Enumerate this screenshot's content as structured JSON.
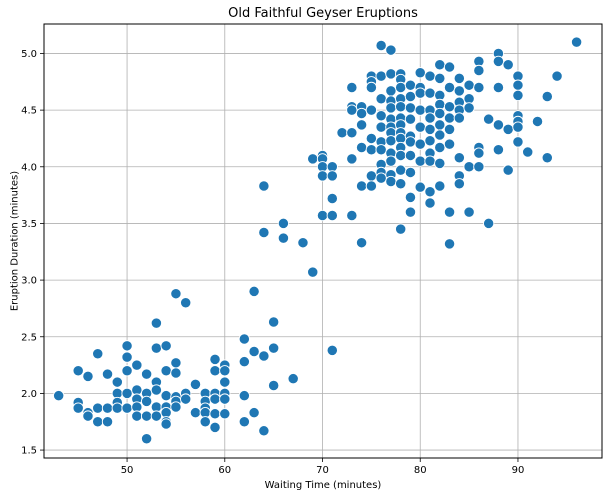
{
  "chart_data": {
    "type": "scatter",
    "title": "Old Faithful Geyser Eruptions",
    "xlabel": "Waiting Time (minutes)",
    "ylabel": "Eruption Duration (minutes)",
    "xlim": [
      41.5,
      98.6
    ],
    "ylim": [
      1.43,
      5.26
    ],
    "xticks": [
      50,
      60,
      70,
      80,
      90
    ],
    "yticks": [
      1.5,
      2.0,
      2.5,
      3.0,
      3.5,
      4.0,
      4.5,
      5.0
    ],
    "xtick_labels": [
      "50",
      "60",
      "70",
      "80",
      "90"
    ],
    "ytick_labels": [
      "1.5",
      "2.0",
      "2.5",
      "3.0",
      "3.5",
      "4.0",
      "4.5",
      "5.0"
    ],
    "grid": true,
    "marker_color": "#1f77b4",
    "points": [
      [
        43,
        1.98
      ],
      [
        45,
        2.2
      ],
      [
        45,
        1.92
      ],
      [
        45,
        1.87
      ],
      [
        46,
        1.83
      ],
      [
        46,
        1.8
      ],
      [
        46,
        2.15
      ],
      [
        47,
        2.35
      ],
      [
        47,
        1.87
      ],
      [
        47,
        1.75
      ],
      [
        48,
        1.87
      ],
      [
        48,
        1.75
      ],
      [
        48,
        2.17
      ],
      [
        49,
        2.1
      ],
      [
        49,
        2.0
      ],
      [
        49,
        1.92
      ],
      [
        49,
        1.87
      ],
      [
        50,
        2.42
      ],
      [
        50,
        2.32
      ],
      [
        50,
        2.2
      ],
      [
        50,
        2.0
      ],
      [
        50,
        1.87
      ],
      [
        51,
        2.25
      ],
      [
        51,
        2.03
      ],
      [
        51,
        1.95
      ],
      [
        51,
        1.88
      ],
      [
        51,
        1.8
      ],
      [
        52,
        2.17
      ],
      [
        52,
        2.0
      ],
      [
        52,
        1.93
      ],
      [
        52,
        1.8
      ],
      [
        52,
        1.6
      ],
      [
        53,
        2.62
      ],
      [
        53,
        2.4
      ],
      [
        53,
        2.1
      ],
      [
        53,
        2.03
      ],
      [
        53,
        1.88
      ],
      [
        53,
        1.8
      ],
      [
        54,
        2.42
      ],
      [
        54,
        2.2
      ],
      [
        54,
        1.98
      ],
      [
        54,
        1.88
      ],
      [
        54,
        1.83
      ],
      [
        54,
        1.75
      ],
      [
        54,
        1.73
      ],
      [
        55,
        2.88
      ],
      [
        55,
        2.27
      ],
      [
        55,
        2.18
      ],
      [
        55,
        1.97
      ],
      [
        55,
        1.93
      ],
      [
        55,
        1.88
      ],
      [
        56,
        2.8
      ],
      [
        56,
        2.0
      ],
      [
        56,
        1.95
      ],
      [
        57,
        2.08
      ],
      [
        57,
        1.83
      ],
      [
        58,
        2.0
      ],
      [
        58,
        1.93
      ],
      [
        58,
        1.87
      ],
      [
        58,
        1.83
      ],
      [
        58,
        1.75
      ],
      [
        59,
        2.3
      ],
      [
        59,
        2.2
      ],
      [
        59,
        2.0
      ],
      [
        59,
        1.95
      ],
      [
        59,
        1.82
      ],
      [
        59,
        1.7
      ],
      [
        60,
        2.25
      ],
      [
        60,
        2.2
      ],
      [
        60,
        2.1
      ],
      [
        60,
        2.0
      ],
      [
        60,
        1.95
      ],
      [
        60,
        1.82
      ],
      [
        62,
        2.48
      ],
      [
        62,
        2.28
      ],
      [
        62,
        1.98
      ],
      [
        62,
        1.75
      ],
      [
        63,
        2.9
      ],
      [
        63,
        2.37
      ],
      [
        63,
        1.83
      ],
      [
        64,
        3.83
      ],
      [
        64,
        3.42
      ],
      [
        64,
        2.33
      ],
      [
        64,
        1.67
      ],
      [
        65,
        2.63
      ],
      [
        65,
        2.4
      ],
      [
        65,
        2.07
      ],
      [
        66,
        3.5
      ],
      [
        66,
        3.37
      ],
      [
        67,
        2.13
      ],
      [
        68,
        3.33
      ],
      [
        69,
        4.07
      ],
      [
        69,
        3.07
      ],
      [
        70,
        4.1
      ],
      [
        70,
        4.07
      ],
      [
        70,
        4.0
      ],
      [
        70,
        3.92
      ],
      [
        70,
        3.57
      ],
      [
        71,
        4.0
      ],
      [
        71,
        3.92
      ],
      [
        71,
        3.72
      ],
      [
        71,
        3.57
      ],
      [
        71,
        2.38
      ],
      [
        72,
        4.3
      ],
      [
        73,
        4.7
      ],
      [
        73,
        4.53
      ],
      [
        73,
        4.5
      ],
      [
        73,
        4.3
      ],
      [
        73,
        4.07
      ],
      [
        73,
        3.57
      ],
      [
        74,
        4.53
      ],
      [
        74,
        4.47
      ],
      [
        74,
        4.37
      ],
      [
        74,
        4.17
      ],
      [
        74,
        3.83
      ],
      [
        74,
        3.33
      ],
      [
        75,
        4.8
      ],
      [
        75,
        4.75
      ],
      [
        75,
        4.7
      ],
      [
        75,
        4.5
      ],
      [
        75,
        4.25
      ],
      [
        75,
        4.15
      ],
      [
        75,
        3.92
      ],
      [
        75,
        3.83
      ],
      [
        76,
        5.07
      ],
      [
        76,
        4.8
      ],
      [
        76,
        4.6
      ],
      [
        76,
        4.45
      ],
      [
        76,
        4.35
      ],
      [
        76,
        4.22
      ],
      [
        76,
        4.15
      ],
      [
        76,
        4.02
      ],
      [
        76,
        3.95
      ],
      [
        76,
        3.9
      ],
      [
        77,
        5.03
      ],
      [
        77,
        4.82
      ],
      [
        77,
        4.67
      ],
      [
        77,
        4.58
      ],
      [
        77,
        4.52
      ],
      [
        77,
        4.42
      ],
      [
        77,
        4.35
      ],
      [
        77,
        4.3
      ],
      [
        77,
        4.23
      ],
      [
        77,
        4.12
      ],
      [
        77,
        4.05
      ],
      [
        77,
        3.93
      ],
      [
        77,
        3.87
      ],
      [
        78,
        4.82
      ],
      [
        78,
        4.77
      ],
      [
        78,
        4.7
      ],
      [
        78,
        4.6
      ],
      [
        78,
        4.53
      ],
      [
        78,
        4.43
      ],
      [
        78,
        4.37
      ],
      [
        78,
        4.3
      ],
      [
        78,
        4.25
      ],
      [
        78,
        4.17
      ],
      [
        78,
        4.1
      ],
      [
        78,
        3.97
      ],
      [
        78,
        3.85
      ],
      [
        78,
        3.45
      ],
      [
        79,
        4.72
      ],
      [
        79,
        4.62
      ],
      [
        79,
        4.52
      ],
      [
        79,
        4.42
      ],
      [
        79,
        4.27
      ],
      [
        79,
        4.22
      ],
      [
        79,
        4.1
      ],
      [
        79,
        3.95
      ],
      [
        79,
        3.73
      ],
      [
        79,
        3.6
      ],
      [
        80,
        4.83
      ],
      [
        80,
        4.7
      ],
      [
        80,
        4.65
      ],
      [
        80,
        4.5
      ],
      [
        80,
        4.35
      ],
      [
        80,
        4.2
      ],
      [
        80,
        4.05
      ],
      [
        80,
        3.82
      ],
      [
        81,
        4.8
      ],
      [
        81,
        4.65
      ],
      [
        81,
        4.5
      ],
      [
        81,
        4.43
      ],
      [
        81,
        4.33
      ],
      [
        81,
        4.23
      ],
      [
        81,
        4.12
      ],
      [
        81,
        4.05
      ],
      [
        81,
        3.78
      ],
      [
        81,
        3.68
      ],
      [
        82,
        4.9
      ],
      [
        82,
        4.78
      ],
      [
        82,
        4.63
      ],
      [
        82,
        4.55
      ],
      [
        82,
        4.47
      ],
      [
        82,
        4.37
      ],
      [
        82,
        4.28
      ],
      [
        82,
        4.17
      ],
      [
        82,
        4.03
      ],
      [
        82,
        3.83
      ],
      [
        83,
        4.88
      ],
      [
        83,
        4.7
      ],
      [
        83,
        4.53
      ],
      [
        83,
        4.43
      ],
      [
        83,
        4.33
      ],
      [
        83,
        4.2
      ],
      [
        83,
        3.6
      ],
      [
        83,
        3.32
      ],
      [
        84,
        4.78
      ],
      [
        84,
        4.67
      ],
      [
        84,
        4.57
      ],
      [
        84,
        4.5
      ],
      [
        84,
        4.43
      ],
      [
        84,
        4.08
      ],
      [
        84,
        3.92
      ],
      [
        84,
        3.85
      ],
      [
        85,
        4.72
      ],
      [
        85,
        4.6
      ],
      [
        85,
        4.52
      ],
      [
        85,
        4.0
      ],
      [
        85,
        3.6
      ],
      [
        86,
        4.93
      ],
      [
        86,
        4.85
      ],
      [
        86,
        4.7
      ],
      [
        86,
        4.17
      ],
      [
        86,
        4.12
      ],
      [
        86,
        4.0
      ],
      [
        87,
        4.42
      ],
      [
        87,
        3.5
      ],
      [
        88,
        5.0
      ],
      [
        88,
        4.93
      ],
      [
        88,
        4.7
      ],
      [
        88,
        4.37
      ],
      [
        88,
        4.15
      ],
      [
        89,
        4.9
      ],
      [
        89,
        4.33
      ],
      [
        89,
        3.97
      ],
      [
        90,
        4.8
      ],
      [
        90,
        4.72
      ],
      [
        90,
        4.63
      ],
      [
        90,
        4.45
      ],
      [
        90,
        4.4
      ],
      [
        90,
        4.35
      ],
      [
        90,
        4.22
      ],
      [
        91,
        4.13
      ],
      [
        92,
        4.4
      ],
      [
        93,
        4.62
      ],
      [
        93,
        4.08
      ],
      [
        94,
        4.8
      ],
      [
        96,
        5.1
      ]
    ]
  }
}
